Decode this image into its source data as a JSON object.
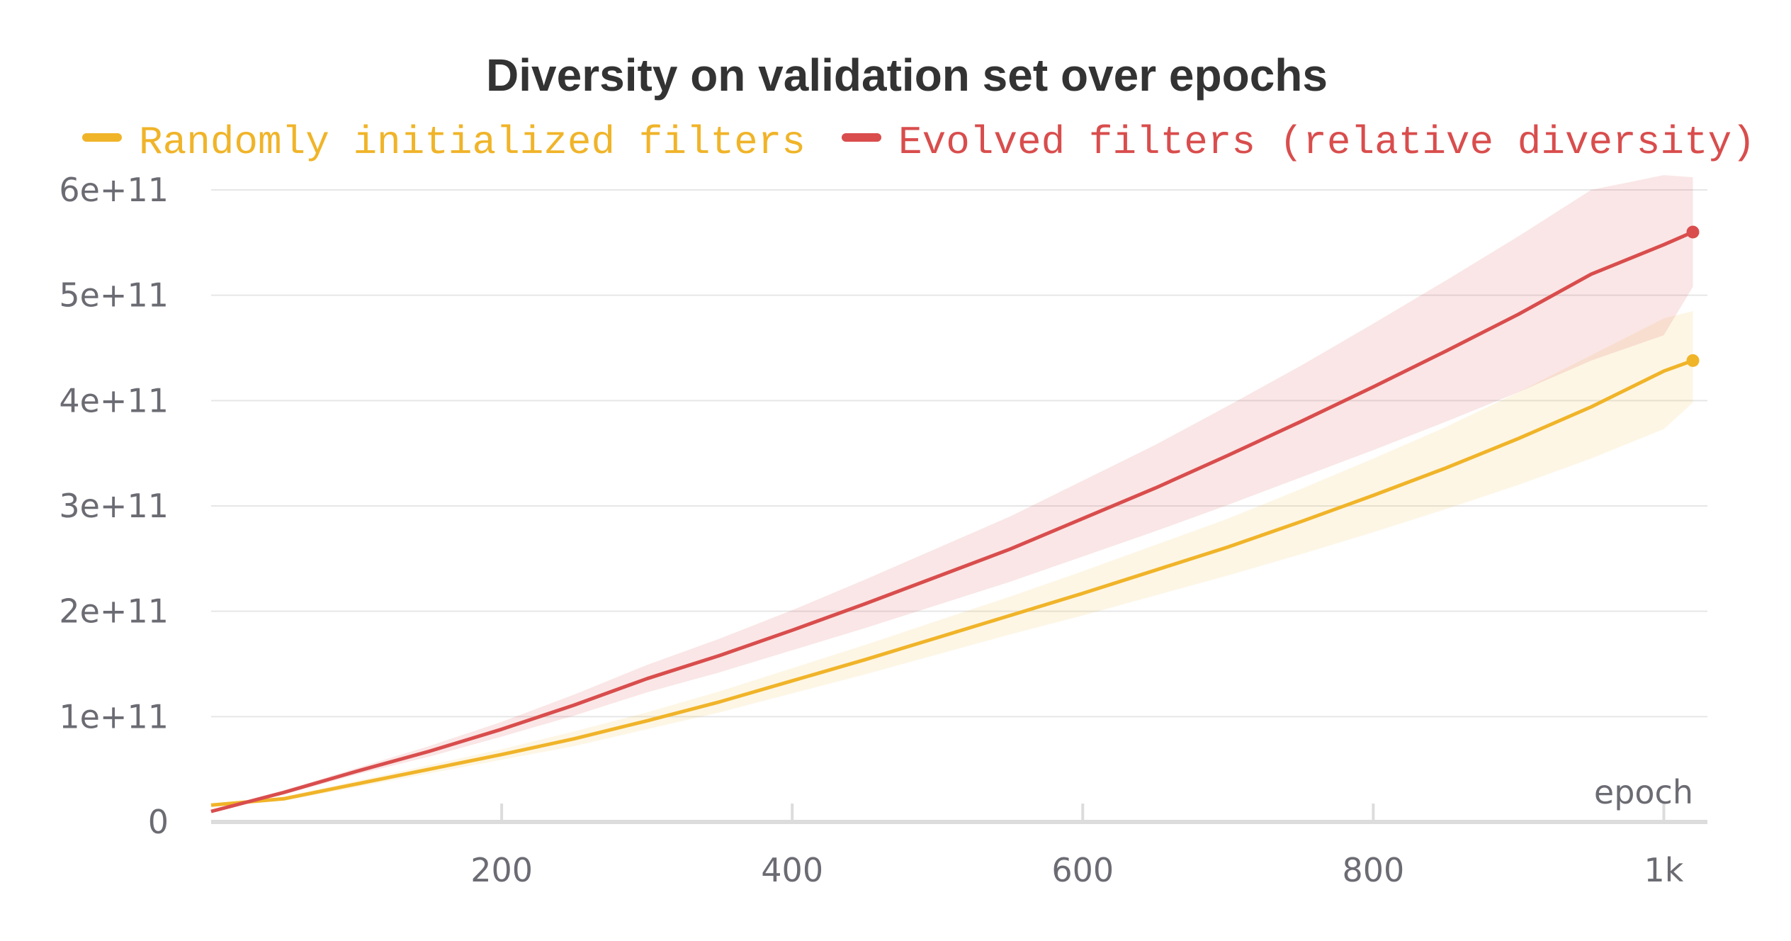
{
  "chart_data": {
    "type": "line",
    "title": "Diversity on validation set over epochs",
    "xlabel": "epoch",
    "ylabel": "",
    "xlim": [
      0,
      1030
    ],
    "ylim": [
      0,
      600000000000
    ],
    "x_ticks": [
      {
        "value": 200,
        "label": "200"
      },
      {
        "value": 400,
        "label": "400"
      },
      {
        "value": 600,
        "label": "600"
      },
      {
        "value": 800,
        "label": "800"
      },
      {
        "value": 1000,
        "label": "1k"
      }
    ],
    "y_ticks": [
      {
        "value": 0,
        "label": "0"
      },
      {
        "value": 100000000000,
        "label": "1e+11"
      },
      {
        "value": 200000000000,
        "label": "2e+11"
      },
      {
        "value": 300000000000,
        "label": "3e+11"
      },
      {
        "value": 400000000000,
        "label": "4e+11"
      },
      {
        "value": 500000000000,
        "label": "5e+11"
      },
      {
        "value": 600000000000,
        "label": "6e+11"
      }
    ],
    "grid": true,
    "legend_position": "top",
    "series": [
      {
        "name": "Randomly initialized filters",
        "color": "#f0b429",
        "x": [
          0,
          50,
          100,
          150,
          200,
          250,
          300,
          350,
          400,
          450,
          500,
          550,
          600,
          650,
          700,
          750,
          800,
          850,
          900,
          950,
          1000,
          1020
        ],
        "values": [
          16000000000.0,
          22000000000.0,
          36000000000.0,
          50000000000.0,
          64000000000.0,
          79000000000.0,
          96000000000.0,
          114000000000.0,
          134000000000.0,
          154000000000.0,
          175000000000.0,
          196000000000.0,
          217000000000.0,
          239000000000.0,
          261000000000.0,
          285000000000.0,
          310000000000.0,
          336000000000.0,
          364000000000.0,
          394000000000.0,
          428000000000.0,
          438000000000.0
        ],
        "lower": [
          15000000000.0,
          20000000000.0,
          33000000000.0,
          46000000000.0,
          59000000000.0,
          72000000000.0,
          88000000000.0,
          104000000000.0,
          122000000000.0,
          140000000000.0,
          159000000000.0,
          178000000000.0,
          196000000000.0,
          215000000000.0,
          234000000000.0,
          254000000000.0,
          275000000000.0,
          297000000000.0,
          320000000000.0,
          345000000000.0,
          373000000000.0,
          398000000000.0
        ],
        "upper": [
          17000000000.0,
          24000000000.0,
          39000000000.0,
          54000000000.0,
          69000000000.0,
          86000000000.0,
          104000000000.0,
          124000000000.0,
          146000000000.0,
          168000000000.0,
          191000000000.0,
          214000000000.0,
          238000000000.0,
          263000000000.0,
          288000000000.0,
          316000000000.0,
          345000000000.0,
          375000000000.0,
          408000000000.0,
          443000000000.0,
          478000000000.0,
          485000000000.0
        ]
      },
      {
        "name": "Evolved filters (relative diversity)",
        "color": "#d94d4d",
        "x": [
          0,
          50,
          100,
          150,
          200,
          250,
          300,
          350,
          400,
          450,
          500,
          550,
          600,
          650,
          700,
          750,
          800,
          850,
          900,
          950,
          1000,
          1020
        ],
        "values": [
          10000000000.0,
          28000000000.0,
          48000000000.0,
          67000000000.0,
          88000000000.0,
          111000000000.0,
          136000000000.0,
          158000000000.0,
          182000000000.0,
          207000000000.0,
          233000000000.0,
          259000000000.0,
          288000000000.0,
          317000000000.0,
          348000000000.0,
          380000000000.0,
          413000000000.0,
          447000000000.0,
          482000000000.0,
          520000000000.0,
          548000000000.0,
          560000000000.0
        ],
        "lower": [
          9000000000.0,
          26000000000.0,
          45000000000.0,
          62000000000.0,
          81000000000.0,
          101000000000.0,
          123000000000.0,
          142000000000.0,
          163000000000.0,
          184000000000.0,
          206000000000.0,
          228000000000.0,
          252000000000.0,
          276000000000.0,
          301000000000.0,
          327000000000.0,
          353000000000.0,
          380000000000.0,
          408000000000.0,
          438000000000.0,
          462000000000.0,
          508000000000.0
        ],
        "upper": [
          11000000000.0,
          30000000000.0,
          51000000000.0,
          72000000000.0,
          95000000000.0,
          121000000000.0,
          149000000000.0,
          174000000000.0,
          201000000000.0,
          230000000000.0,
          260000000000.0,
          290000000000.0,
          324000000000.0,
          358000000000.0,
          395000000000.0,
          433000000000.0,
          473000000000.0,
          514000000000.0,
          556000000000.0,
          600000000000.0,
          614000000000.0,
          612000000000.0
        ]
      }
    ]
  }
}
